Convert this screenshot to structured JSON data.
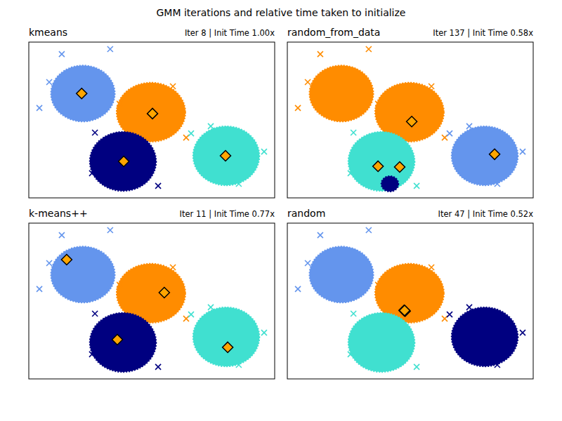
{
  "title": "GMM iterations and relative time taken to initialize",
  "chart_data": [
    {
      "type": "scatter",
      "title": "kmeans",
      "subtitle": "Iter 8 | Init Time 1.00x",
      "xlim": [
        0,
        10
      ],
      "ylim": [
        0,
        10
      ],
      "tick_labels": false,
      "series": [
        {
          "color": "#6495ed",
          "marker": "x",
          "center": [
            2.2,
            6.7
          ],
          "spread": [
            1.3,
            1.8
          ],
          "x": [
            1.34,
            3.31,
            0.43,
            0.83
          ],
          "y": [
            9.23,
            9.55,
            5.77,
            7.43
          ]
        },
        {
          "color": "#ff8c00",
          "marker": "x",
          "center": [
            4.97,
            5.5
          ],
          "spread": [
            1.4,
            1.9
          ],
          "x": [
            5.86,
            6.4,
            3.69
          ],
          "y": [
            7.16,
            3.87,
            6.04
          ]
        },
        {
          "color": "#000080",
          "marker": "x",
          "center": [
            3.83,
            2.34
          ],
          "spread": [
            1.35,
            1.9
          ],
          "x": [
            2.57,
            5.26,
            2.69
          ],
          "y": [
            1.58,
            0.77,
            4.19
          ]
        },
        {
          "color": "#40e0d0",
          "marker": "x",
          "center": [
            8.03,
            2.7
          ],
          "spread": [
            1.35,
            1.9
          ],
          "x": [
            9.57,
            6.6,
            8.54,
            7.4
          ],
          "y": [
            2.97,
            4.14,
            0.9,
            4.6
          ]
        }
      ],
      "means": {
        "color": "#ffa500",
        "marker": "diamond",
        "x": [
          2.15,
          5.03,
          3.86,
          8.0
        ],
        "y": [
          6.7,
          5.41,
          2.34,
          2.7
        ]
      }
    },
    {
      "type": "scatter",
      "title": "random_from_data",
      "subtitle": "Iter 137 | Init Time 0.58x",
      "xlim": [
        0,
        10
      ],
      "ylim": [
        0,
        10
      ],
      "tick_labels": false,
      "series": [
        {
          "color": "#ff8c00",
          "marker": "x",
          "center": [
            2.2,
            6.7
          ],
          "spread": [
            1.3,
            1.8
          ],
          "x": [
            1.34,
            3.31,
            0.43,
            0.83
          ],
          "y": [
            9.23,
            9.55,
            5.77,
            7.43
          ]
        },
        {
          "color": "#ff8c00",
          "marker": "x",
          "center": [
            4.97,
            5.5
          ],
          "spread": [
            1.4,
            1.9
          ],
          "x": [
            5.86,
            6.4,
            3.69
          ],
          "y": [
            7.16,
            3.87,
            6.04
          ]
        },
        {
          "color": "#40e0d0",
          "marker": "x",
          "center": [
            3.83,
            2.34
          ],
          "spread": [
            1.35,
            1.9
          ],
          "x": [
            2.57,
            5.26,
            2.69
          ],
          "y": [
            1.58,
            0.77,
            4.19
          ]
        },
        {
          "color": "#000080",
          "marker": "x",
          "center": [
            4.17,
            0.9
          ],
          "spread": [
            0.35,
            0.5
          ],
          "x": [],
          "y": []
        },
        {
          "color": "#6495ed",
          "marker": "x",
          "center": [
            8.03,
            2.7
          ],
          "spread": [
            1.35,
            1.9
          ],
          "x": [
            9.57,
            6.6,
            8.54,
            7.4
          ],
          "y": [
            2.97,
            4.14,
            0.9,
            4.6
          ]
        }
      ],
      "means": {
        "color": "#ffa500",
        "marker": "diamond",
        "x": [
          5.06,
          3.69,
          4.57,
          8.43
        ],
        "y": [
          4.9,
          2.03,
          1.98,
          2.8
        ]
      }
    },
    {
      "type": "scatter",
      "title": "k-means++",
      "subtitle": "Iter 11 | Init Time 0.77x",
      "xlim": [
        0,
        10
      ],
      "ylim": [
        0,
        10
      ],
      "tick_labels": false,
      "series": [
        {
          "color": "#6495ed",
          "marker": "x",
          "center": [
            2.2,
            6.7
          ],
          "spread": [
            1.3,
            1.8
          ],
          "x": [
            1.34,
            3.31,
            0.43,
            0.83
          ],
          "y": [
            9.23,
            9.55,
            5.77,
            7.43
          ]
        },
        {
          "color": "#ff8c00",
          "marker": "x",
          "center": [
            4.97,
            5.5
          ],
          "spread": [
            1.4,
            1.9
          ],
          "x": [
            5.86,
            6.4,
            3.69
          ],
          "y": [
            7.16,
            3.87,
            6.04
          ]
        },
        {
          "color": "#000080",
          "marker": "x",
          "center": [
            3.83,
            2.34
          ],
          "spread": [
            1.35,
            1.9
          ],
          "x": [
            2.57,
            5.26,
            2.69
          ],
          "y": [
            1.58,
            0.77,
            4.19
          ]
        },
        {
          "color": "#40e0d0",
          "marker": "x",
          "center": [
            8.03,
            2.7
          ],
          "spread": [
            1.35,
            1.9
          ],
          "x": [
            9.57,
            6.6,
            8.54,
            7.4
          ],
          "y": [
            2.97,
            4.14,
            0.9,
            4.6
          ]
        }
      ],
      "means": {
        "color": "#ffa500",
        "marker": "diamond",
        "x": [
          1.54,
          5.51,
          3.6,
          8.09
        ],
        "y": [
          7.66,
          5.54,
          2.52,
          2.03
        ]
      }
    },
    {
      "type": "scatter",
      "title": "random",
      "subtitle": "Iter 47 | Init Time 0.52x",
      "xlim": [
        0,
        10
      ],
      "ylim": [
        0,
        10
      ],
      "tick_labels": false,
      "series": [
        {
          "color": "#6495ed",
          "marker": "x",
          "center": [
            2.2,
            6.7
          ],
          "spread": [
            1.3,
            1.8
          ],
          "x": [
            1.34,
            3.31,
            0.43,
            0.83
          ],
          "y": [
            9.23,
            9.55,
            5.77,
            7.43
          ]
        },
        {
          "color": "#ff8c00",
          "marker": "x",
          "center": [
            4.97,
            5.5
          ],
          "spread": [
            1.4,
            1.9
          ],
          "x": [
            5.86,
            6.4,
            3.69
          ],
          "y": [
            7.16,
            3.87,
            6.04
          ]
        },
        {
          "color": "#40e0d0",
          "marker": "x",
          "center": [
            3.83,
            2.34
          ],
          "spread": [
            1.35,
            1.9
          ],
          "x": [
            2.57,
            5.26,
            2.69
          ],
          "y": [
            1.58,
            0.77,
            4.19
          ]
        },
        {
          "color": "#000080",
          "marker": "x",
          "center": [
            8.03,
            2.7
          ],
          "spread": [
            1.35,
            1.9
          ],
          "x": [
            9.57,
            6.6,
            8.54,
            7.4
          ],
          "y": [
            2.97,
            4.14,
            0.9,
            4.6
          ]
        }
      ],
      "means": {
        "color": "#ffa500",
        "marker": "diamond",
        "x": [
          4.77,
          4.75,
          4.79,
          4.77
        ],
        "y": [
          4.37,
          4.4,
          4.35,
          4.39
        ]
      }
    }
  ]
}
